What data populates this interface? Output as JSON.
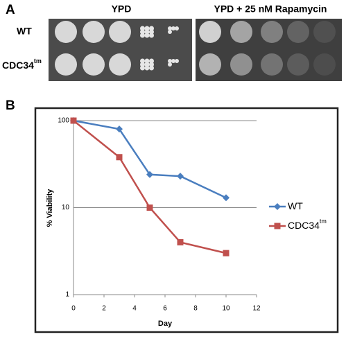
{
  "panel_a": {
    "label": "A",
    "plate_titles": [
      "YPD",
      "YPD + 25 nM Rapamycin"
    ],
    "row_labels": [
      {
        "base": "WT"
      },
      {
        "base": "CDC34",
        "sup": "tm"
      }
    ]
  },
  "panel_b": {
    "label": "B"
  },
  "chart_data": {
    "type": "line",
    "x_label": "Day",
    "y_label": "% Viability",
    "x": [
      0,
      3,
      5,
      7,
      10
    ],
    "series": [
      {
        "name": "WT",
        "color": "#4a7ebf",
        "marker": "diamond",
        "values": [
          100,
          80,
          24,
          23,
          13
        ]
      },
      {
        "name": "CDC34",
        "name_superscript": "tm",
        "color": "#c0504d",
        "marker": "square",
        "values": [
          100,
          38,
          10,
          4,
          3
        ]
      }
    ],
    "xlim": [
      0,
      12
    ],
    "xticks": [
      0,
      2,
      4,
      6,
      8,
      10,
      12
    ],
    "ylim": [
      1,
      100
    ],
    "yticks": [
      1,
      10,
      100
    ],
    "y_log": true,
    "grid": true,
    "legend": "right"
  }
}
